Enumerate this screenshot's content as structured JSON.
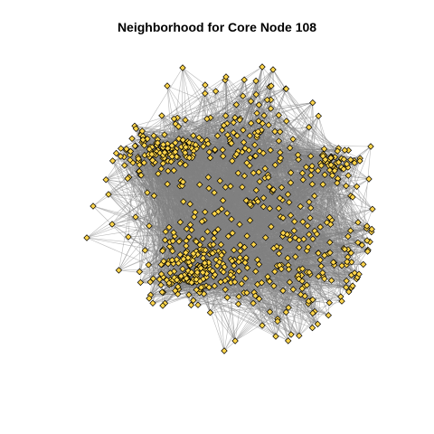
{
  "plot": {
    "title": "Neighborhood for Core Node 108"
  },
  "graph": {
    "type": "network",
    "core_node": "108",
    "edge_color": "#808080",
    "node_fill": "#FFD54A",
    "node_stroke": "#000000",
    "node_shape": "diamond",
    "background": "#FFFFFF",
    "layout_style": "force-directed",
    "dense_clusters": [
      "upper-left",
      "lower-left",
      "right"
    ]
  }
}
